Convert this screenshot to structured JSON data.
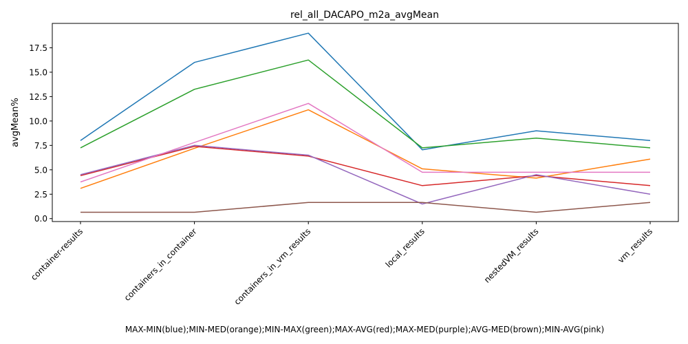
{
  "chart_data": {
    "type": "line",
    "title": "rel_all_DACAPO_m2a_avgMean",
    "xlabel": "MAX-MIN(blue);MIN-MED(orange);MIN-MAX(green);MAX-AVG(red);MAX-MED(purple);AVG-MED(brown);MIN-AVG(pink)",
    "ylabel": "avgMean%",
    "categories": [
      "container-results",
      "containers_in_container",
      "containers_in_vm_results",
      "local_results",
      "nestedVM_results",
      "vm_results"
    ],
    "yticks": [
      "0.0",
      "2.5",
      "5.0",
      "7.5",
      "10.0",
      "12.5",
      "15.0",
      "17.5"
    ],
    "ylim": [
      -0.3,
      20.0
    ],
    "grid": false,
    "series": [
      {
        "color": "#1f77b4",
        "values": [
          8.0,
          16.0,
          19.0,
          7.05,
          9.0,
          8.0
        ]
      },
      {
        "color": "#ff7f0e",
        "values": [
          3.1,
          7.2,
          11.15,
          5.1,
          4.15,
          6.1
        ]
      },
      {
        "color": "#2ca02c",
        "values": [
          7.25,
          13.25,
          16.25,
          7.25,
          8.25,
          7.25
        ]
      },
      {
        "color": "#d62728",
        "values": [
          4.4,
          7.4,
          6.4,
          3.38,
          4.4,
          3.38
        ]
      },
      {
        "color": "#9467bd",
        "values": [
          4.5,
          7.5,
          6.5,
          1.5,
          4.5,
          2.5
        ]
      },
      {
        "color": "#8c564b",
        "values": [
          0.65,
          0.65,
          1.65,
          1.65,
          0.65,
          1.65
        ]
      },
      {
        "color": "#e377c2",
        "values": [
          3.75,
          7.8,
          11.8,
          4.75,
          4.75,
          4.75
        ]
      }
    ]
  }
}
